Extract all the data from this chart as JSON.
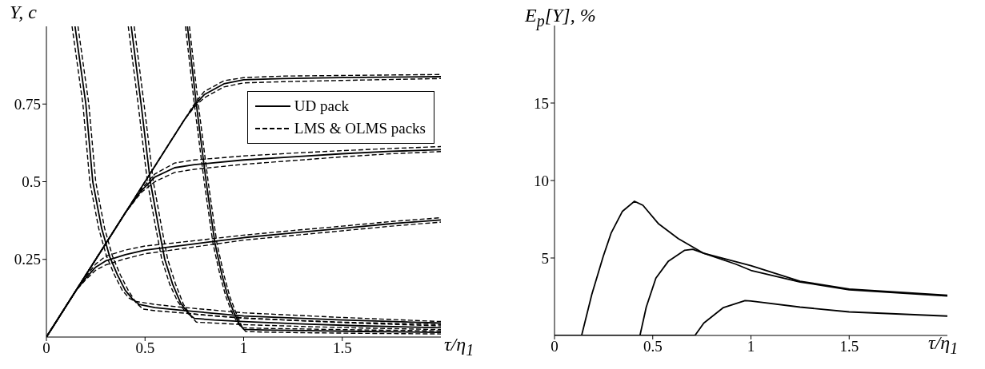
{
  "chart_data": [
    {
      "type": "line",
      "ylabel": "Y, c",
      "xlabel": "τ/η$_{1}$",
      "xlim": [
        0,
        2
      ],
      "xticks": [
        0,
        0.5,
        1,
        1.5
      ],
      "ylim": [
        0,
        1
      ],
      "yticks": [
        0.25,
        0.5,
        0.75
      ],
      "legend": "right",
      "series": [
        {
          "name": "UD pack",
          "color": "#000000",
          "line_style": "solid",
          "x": [
            0,
            0.2,
            0.4,
            0.6,
            0.7,
            0.75,
            0.8,
            0.9,
            1.0,
            1.2,
            1.5,
            2.0
          ],
          "values": [
            0,
            0.2,
            0.4,
            0.6,
            0.7,
            0.745,
            0.78,
            0.815,
            0.828,
            0.832,
            0.835,
            0.838
          ]
        },
        {
          "name": "LMS & OLMS packs",
          "color": "#000000",
          "line_style": "dashed",
          "x": [
            0,
            0.2,
            0.4,
            0.6,
            0.7,
            0.75,
            0.8,
            0.9,
            1.0,
            1.2,
            1.5,
            2.0
          ],
          "values": [
            0,
            0.2,
            0.4,
            0.6,
            0.7,
            0.75,
            0.79,
            0.825,
            0.835,
            0.84,
            0.842,
            0.845
          ]
        },
        {
          "color": "#000000",
          "line_style": "dashed",
          "x": [
            0,
            0.2,
            0.4,
            0.6,
            0.7,
            0.75,
            0.8,
            0.9,
            1.0,
            1.2,
            1.5,
            2.0
          ],
          "values": [
            0,
            0.2,
            0.4,
            0.6,
            0.7,
            0.74,
            0.77,
            0.805,
            0.818,
            0.822,
            0.826,
            0.832
          ]
        },
        {
          "color": "#000000",
          "line_style": "solid",
          "x": [
            0,
            0.2,
            0.4,
            0.48,
            0.55,
            0.65,
            0.75,
            1.0,
            1.25,
            1.5,
            1.75,
            2.0
          ],
          "values": [
            0,
            0.2,
            0.4,
            0.47,
            0.515,
            0.545,
            0.555,
            0.57,
            0.58,
            0.59,
            0.598,
            0.603
          ]
        },
        {
          "color": "#000000",
          "line_style": "dashed",
          "x": [
            0,
            0.2,
            0.4,
            0.48,
            0.55,
            0.65,
            0.75,
            1.0,
            1.25,
            1.5,
            1.75,
            2.0
          ],
          "values": [
            0,
            0.2,
            0.4,
            0.475,
            0.525,
            0.56,
            0.57,
            0.583,
            0.592,
            0.6,
            0.607,
            0.613
          ]
        },
        {
          "color": "#000000",
          "line_style": "dashed",
          "x": [
            0,
            0.2,
            0.4,
            0.48,
            0.55,
            0.65,
            0.75,
            1.0,
            1.25,
            1.5,
            1.75,
            2.0
          ],
          "values": [
            0,
            0.2,
            0.4,
            0.465,
            0.5,
            0.53,
            0.54,
            0.556,
            0.568,
            0.58,
            0.59,
            0.597
          ]
        },
        {
          "color": "#000000",
          "line_style": "solid",
          "x": [
            0,
            0.15,
            0.2,
            0.25,
            0.3,
            0.4,
            0.5,
            0.75,
            1.0,
            1.25,
            1.5,
            1.75,
            2.0
          ],
          "values": [
            0,
            0.15,
            0.19,
            0.225,
            0.245,
            0.265,
            0.28,
            0.3,
            0.32,
            0.335,
            0.35,
            0.365,
            0.377
          ]
        },
        {
          "color": "#000000",
          "line_style": "dashed",
          "x": [
            0,
            0.15,
            0.2,
            0.25,
            0.3,
            0.4,
            0.5,
            0.75,
            1.0,
            1.25,
            1.5,
            1.75,
            2.0
          ],
          "values": [
            0,
            0.15,
            0.195,
            0.235,
            0.26,
            0.28,
            0.293,
            0.31,
            0.328,
            0.343,
            0.357,
            0.372,
            0.384
          ]
        },
        {
          "color": "#000000",
          "line_style": "dashed",
          "x": [
            0,
            0.15,
            0.2,
            0.25,
            0.3,
            0.4,
            0.5,
            0.75,
            1.0,
            1.25,
            1.5,
            1.75,
            2.0
          ],
          "values": [
            0,
            0.15,
            0.185,
            0.215,
            0.232,
            0.252,
            0.268,
            0.29,
            0.312,
            0.327,
            0.342,
            0.357,
            0.37
          ]
        },
        {
          "color": "#000000",
          "line_style": "solid",
          "x": [
            0.145,
            0.2,
            0.235,
            0.28,
            0.32,
            0.36,
            0.4,
            0.44,
            0.47,
            0.55,
            0.7,
            1.0,
            1.5,
            2.0
          ],
          "values": [
            1,
            0.75,
            0.5,
            0.35,
            0.26,
            0.2,
            0.15,
            0.12,
            0.105,
            0.095,
            0.085,
            0.068,
            0.055,
            0.045
          ]
        },
        {
          "color": "#000000",
          "line_style": "dashed",
          "x": [
            0.13,
            0.185,
            0.22,
            0.265,
            0.305,
            0.345,
            0.385,
            0.42,
            0.45,
            0.55,
            0.7,
            1.0,
            1.5,
            2.0
          ],
          "values": [
            1,
            0.75,
            0.5,
            0.35,
            0.26,
            0.2,
            0.15,
            0.125,
            0.115,
            0.105,
            0.095,
            0.078,
            0.063,
            0.05
          ]
        },
        {
          "color": "#000000",
          "line_style": "dashed",
          "x": [
            0.16,
            0.215,
            0.25,
            0.295,
            0.335,
            0.375,
            0.415,
            0.455,
            0.49,
            0.55,
            0.7,
            1.0,
            1.5,
            2.0
          ],
          "values": [
            1,
            0.75,
            0.5,
            0.35,
            0.26,
            0.2,
            0.15,
            0.11,
            0.09,
            0.085,
            0.077,
            0.06,
            0.048,
            0.04
          ]
        },
        {
          "color": "#000000",
          "line_style": "solid",
          "x": [
            0.43,
            0.48,
            0.527,
            0.57,
            0.6,
            0.64,
            0.68,
            0.72,
            0.75,
            0.85,
            1.0,
            1.3,
            1.6,
            2.0
          ],
          "values": [
            1,
            0.75,
            0.5,
            0.35,
            0.25,
            0.17,
            0.11,
            0.075,
            0.06,
            0.055,
            0.05,
            0.042,
            0.036,
            0.03
          ]
        },
        {
          "color": "#000000",
          "line_style": "dashed",
          "x": [
            0.415,
            0.465,
            0.512,
            0.555,
            0.585,
            0.625,
            0.665,
            0.7,
            0.73,
            0.85,
            1.0,
            1.3,
            1.6,
            2.0
          ],
          "values": [
            1,
            0.75,
            0.5,
            0.35,
            0.25,
            0.17,
            0.115,
            0.085,
            0.075,
            0.068,
            0.062,
            0.052,
            0.044,
            0.036
          ]
        },
        {
          "color": "#000000",
          "line_style": "dashed",
          "x": [
            0.445,
            0.495,
            0.542,
            0.585,
            0.615,
            0.655,
            0.695,
            0.735,
            0.76,
            0.85,
            1.0,
            1.3,
            1.6,
            2.0
          ],
          "values": [
            1,
            0.75,
            0.5,
            0.35,
            0.25,
            0.17,
            0.105,
            0.065,
            0.048,
            0.045,
            0.04,
            0.034,
            0.029,
            0.024
          ]
        },
        {
          "color": "#000000",
          "line_style": "solid",
          "x": [
            0.715,
            0.76,
            0.81,
            0.855,
            0.89,
            0.92,
            0.95,
            0.98,
            1.0,
            1.1,
            1.3,
            1.6,
            2.0
          ],
          "values": [
            1,
            0.75,
            0.5,
            0.3,
            0.2,
            0.13,
            0.08,
            0.04,
            0.025,
            0.023,
            0.021,
            0.018,
            0.015
          ]
        },
        {
          "color": "#000000",
          "line_style": "dashed",
          "x": [
            0.705,
            0.75,
            0.8,
            0.845,
            0.88,
            0.91,
            0.94,
            0.97,
            0.99,
            1.1,
            1.3,
            1.6,
            2.0
          ],
          "values": [
            1,
            0.75,
            0.5,
            0.3,
            0.2,
            0.13,
            0.08,
            0.045,
            0.03,
            0.028,
            0.026,
            0.023,
            0.02
          ]
        },
        {
          "color": "#000000",
          "line_style": "dashed",
          "x": [
            0.725,
            0.77,
            0.82,
            0.865,
            0.9,
            0.93,
            0.96,
            0.99,
            1.01,
            1.1,
            1.3,
            1.6,
            2.0
          ],
          "values": [
            1,
            0.75,
            0.5,
            0.3,
            0.2,
            0.13,
            0.08,
            0.035,
            0.018,
            0.016,
            0.014,
            0.012,
            0.01
          ]
        }
      ]
    },
    {
      "type": "line",
      "ylabel": "E$_{p}$[Y], %",
      "xlabel": "τ/η$_{1}$",
      "xlim": [
        0,
        2
      ],
      "xticks": [
        0,
        0.5,
        1,
        1.5
      ],
      "ylim": [
        0,
        20
      ],
      "yticks": [
        5,
        10,
        15
      ],
      "series": [
        {
          "color": "#000000",
          "line_style": "solid",
          "x": [
            0,
            0.138,
            0.19,
            0.248,
            0.288,
            0.345,
            0.407,
            0.45,
            0.53,
            0.63,
            0.76,
            1.0,
            1.25,
            1.5,
            2.0
          ],
          "values": [
            0,
            0,
            2.65,
            5.1,
            6.6,
            8.0,
            8.66,
            8.4,
            7.2,
            6.25,
            5.3,
            4.5,
            3.5,
            3.0,
            2.6
          ]
        },
        {
          "color": "#000000",
          "line_style": "solid",
          "x": [
            0,
            0.435,
            0.467,
            0.516,
            0.58,
            0.663,
            0.704,
            0.76,
            0.923,
            1.0,
            1.25,
            1.5,
            2.0
          ],
          "values": [
            0,
            0,
            1.83,
            3.7,
            4.8,
            5.5,
            5.56,
            5.3,
            4.6,
            4.2,
            3.45,
            2.95,
            2.55
          ]
        },
        {
          "color": "#000000",
          "line_style": "solid",
          "x": [
            0,
            0.715,
            0.76,
            0.86,
            0.97,
            1.0,
            1.25,
            1.5,
            2.0
          ],
          "values": [
            0,
            0,
            0.8,
            1.8,
            2.25,
            2.22,
            1.83,
            1.52,
            1.25
          ]
        }
      ]
    }
  ]
}
